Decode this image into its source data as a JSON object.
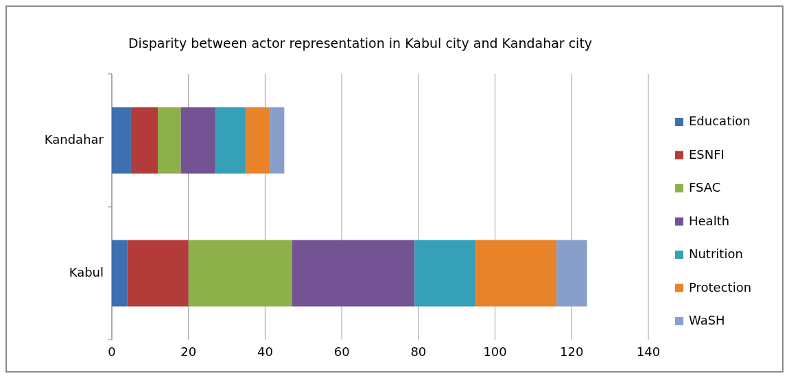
{
  "chart_data": {
    "type": "bar",
    "orientation": "horizontal",
    "stacked": true,
    "title": "Disparity between actor representation in Kabul city and Kandahar city",
    "categories": [
      "Kandahar",
      "Kabul"
    ],
    "series": [
      {
        "name": "Education",
        "color": "#3e6fb0",
        "values": [
          5,
          4
        ]
      },
      {
        "name": "ESNFI",
        "color": "#b33c3a",
        "values": [
          7,
          16
        ]
      },
      {
        "name": "FSAC",
        "color": "#8eb04a",
        "values": [
          6,
          27
        ]
      },
      {
        "name": "Health",
        "color": "#735393",
        "values": [
          9,
          32
        ]
      },
      {
        "name": "Nutrition",
        "color": "#35a0b8",
        "values": [
          8,
          16
        ]
      },
      {
        "name": "Protection",
        "color": "#e8832a",
        "values": [
          6,
          21
        ]
      },
      {
        "name": "WaSH",
        "color": "#889fcc",
        "values": [
          4,
          8
        ]
      }
    ],
    "xlim": [
      0,
      140
    ],
    "xticks": [
      0,
      20,
      40,
      60,
      80,
      100,
      120,
      140
    ],
    "grid": "x",
    "legend": "right"
  }
}
